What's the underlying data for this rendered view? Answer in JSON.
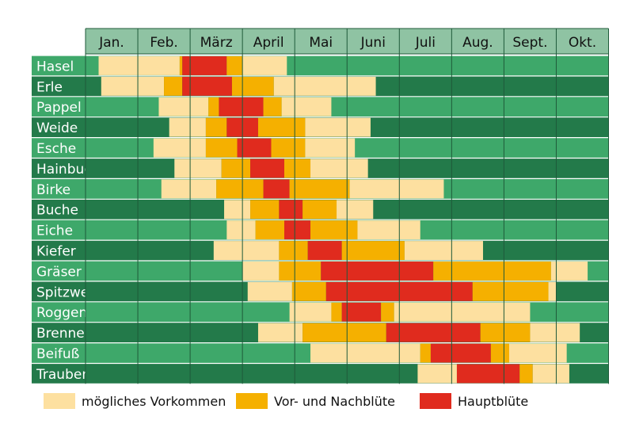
{
  "chart_data": {
    "type": "heatmap",
    "months": [
      "Jan.",
      "Feb.",
      "März",
      "April",
      "Mai",
      "Juni",
      "Juli",
      "Aug.",
      "Sept.",
      "Okt."
    ],
    "rows": [
      {
        "plant": "Hasel",
        "periods": [
          {
            "level": "moeglich",
            "from": 0.25,
            "to": 1.8
          },
          {
            "level": "vornach",
            "from": 1.8,
            "to": 1.85
          },
          {
            "level": "haupt",
            "from": 1.85,
            "to": 2.7
          },
          {
            "level": "vornach",
            "from": 2.7,
            "to": 3.0
          },
          {
            "level": "moeglich",
            "from": 3.0,
            "to": 3.85
          }
        ]
      },
      {
        "plant": "Erle",
        "periods": [
          {
            "level": "moeglich",
            "from": 0.3,
            "to": 1.5
          },
          {
            "level": "vornach",
            "from": 1.5,
            "to": 1.85
          },
          {
            "level": "haupt",
            "from": 1.85,
            "to": 2.8
          },
          {
            "level": "vornach",
            "from": 2.8,
            "to": 3.6
          },
          {
            "level": "moeglich",
            "from": 3.6,
            "to": 5.55
          }
        ]
      },
      {
        "plant": "Pappel",
        "periods": [
          {
            "level": "moeglich",
            "from": 1.4,
            "to": 2.35
          },
          {
            "level": "vornach",
            "from": 2.35,
            "to": 2.55
          },
          {
            "level": "haupt",
            "from": 2.55,
            "to": 3.4
          },
          {
            "level": "vornach",
            "from": 3.4,
            "to": 3.75
          },
          {
            "level": "moeglich",
            "from": 3.75,
            "to": 4.7
          }
        ]
      },
      {
        "plant": "Weide",
        "periods": [
          {
            "level": "moeglich",
            "from": 1.6,
            "to": 2.3
          },
          {
            "level": "vornach",
            "from": 2.3,
            "to": 2.7
          },
          {
            "level": "haupt",
            "from": 2.7,
            "to": 3.3
          },
          {
            "level": "vornach",
            "from": 3.3,
            "to": 4.2
          },
          {
            "level": "moeglich",
            "from": 4.2,
            "to": 5.45
          }
        ]
      },
      {
        "plant": "Esche",
        "periods": [
          {
            "level": "moeglich",
            "from": 1.3,
            "to": 2.3
          },
          {
            "level": "vornach",
            "from": 2.3,
            "to": 2.9
          },
          {
            "level": "haupt",
            "from": 2.9,
            "to": 3.55
          },
          {
            "level": "vornach",
            "from": 3.55,
            "to": 4.2
          },
          {
            "level": "moeglich",
            "from": 4.2,
            "to": 5.15
          }
        ]
      },
      {
        "plant": "Hainbuche",
        "periods": [
          {
            "level": "moeglich",
            "from": 1.7,
            "to": 2.6
          },
          {
            "level": "vornach",
            "from": 2.6,
            "to": 3.15
          },
          {
            "level": "haupt",
            "from": 3.15,
            "to": 3.8
          },
          {
            "level": "vornach",
            "from": 3.8,
            "to": 4.3
          },
          {
            "level": "moeglich",
            "from": 4.3,
            "to": 5.4
          }
        ]
      },
      {
        "plant": "Birke",
        "periods": [
          {
            "level": "moeglich",
            "from": 1.45,
            "to": 2.5
          },
          {
            "level": "vornach",
            "from": 2.5,
            "to": 3.4
          },
          {
            "level": "haupt",
            "from": 3.4,
            "to": 3.9
          },
          {
            "level": "vornach",
            "from": 3.9,
            "to": 5.05
          },
          {
            "level": "moeglich",
            "from": 5.05,
            "to": 6.85
          }
        ]
      },
      {
        "plant": "Buche",
        "periods": [
          {
            "level": "moeglich",
            "from": 2.65,
            "to": 3.15
          },
          {
            "level": "vornach",
            "from": 3.15,
            "to": 3.7
          },
          {
            "level": "haupt",
            "from": 3.7,
            "to": 4.15
          },
          {
            "level": "vornach",
            "from": 4.15,
            "to": 4.8
          },
          {
            "level": "moeglich",
            "from": 4.8,
            "to": 5.5
          }
        ]
      },
      {
        "plant": "Eiche",
        "periods": [
          {
            "level": "moeglich",
            "from": 2.7,
            "to": 3.25
          },
          {
            "level": "vornach",
            "from": 3.25,
            "to": 3.8
          },
          {
            "level": "haupt",
            "from": 3.8,
            "to": 4.3
          },
          {
            "level": "vornach",
            "from": 4.3,
            "to": 5.2
          },
          {
            "level": "moeglich",
            "from": 5.2,
            "to": 6.4
          }
        ]
      },
      {
        "plant": "Kiefer",
        "periods": [
          {
            "level": "moeglich",
            "from": 2.45,
            "to": 3.7
          },
          {
            "level": "vornach",
            "from": 3.7,
            "to": 4.25
          },
          {
            "level": "haupt",
            "from": 4.25,
            "to": 4.9
          },
          {
            "level": "vornach",
            "from": 4.9,
            "to": 6.1
          },
          {
            "level": "moeglich",
            "from": 6.1,
            "to": 7.6
          }
        ]
      },
      {
        "plant": "Gräser",
        "periods": [
          {
            "level": "moeglich",
            "from": 3.0,
            "to": 3.7
          },
          {
            "level": "vornach",
            "from": 3.7,
            "to": 4.5
          },
          {
            "level": "haupt",
            "from": 4.5,
            "to": 6.65
          },
          {
            "level": "vornach",
            "from": 6.65,
            "to": 8.9
          },
          {
            "level": "moeglich",
            "from": 8.9,
            "to": 9.6
          }
        ]
      },
      {
        "plant": "Spitzwegerich",
        "periods": [
          {
            "level": "moeglich",
            "from": 3.1,
            "to": 3.95
          },
          {
            "level": "vornach",
            "from": 3.95,
            "to": 4.6
          },
          {
            "level": "haupt",
            "from": 4.6,
            "to": 7.4
          },
          {
            "level": "vornach",
            "from": 7.4,
            "to": 8.85
          },
          {
            "level": "moeglich",
            "from": 8.85,
            "to": 9.0
          }
        ]
      },
      {
        "plant": "Roggen",
        "periods": [
          {
            "level": "moeglich",
            "from": 3.9,
            "to": 4.7
          },
          {
            "level": "vornach",
            "from": 4.7,
            "to": 4.9
          },
          {
            "level": "haupt",
            "from": 4.9,
            "to": 5.65
          },
          {
            "level": "vornach",
            "from": 5.65,
            "to": 5.9
          },
          {
            "level": "moeglich",
            "from": 5.9,
            "to": 8.5
          }
        ]
      },
      {
        "plant": "Brennessel",
        "periods": [
          {
            "level": "moeglich",
            "from": 3.3,
            "to": 4.15
          },
          {
            "level": "vornach",
            "from": 4.15,
            "to": 5.75
          },
          {
            "level": "haupt",
            "from": 5.75,
            "to": 7.55
          },
          {
            "level": "vornach",
            "from": 7.55,
            "to": 8.5
          },
          {
            "level": "moeglich",
            "from": 8.5,
            "to": 9.45
          }
        ]
      },
      {
        "plant": "Beifuß",
        "periods": [
          {
            "level": "moeglich",
            "from": 4.3,
            "to": 6.4
          },
          {
            "level": "vornach",
            "from": 6.4,
            "to": 6.6
          },
          {
            "level": "haupt",
            "from": 6.6,
            "to": 7.75
          },
          {
            "level": "vornach",
            "from": 7.75,
            "to": 8.1
          },
          {
            "level": "moeglich",
            "from": 8.1,
            "to": 9.2
          }
        ]
      },
      {
        "plant": "Traubenkraut",
        "periods": [
          {
            "level": "moeglich",
            "from": 6.35,
            "to": 7.1
          },
          {
            "level": "haupt",
            "from": 7.1,
            "to": 8.3
          },
          {
            "level": "vornach",
            "from": 8.3,
            "to": 8.55
          },
          {
            "level": "moeglich",
            "from": 8.55,
            "to": 9.25
          }
        ]
      }
    ],
    "legend": [
      {
        "key": "moeglich",
        "label": "mögliches Vorkommen",
        "color": "#fde0a0"
      },
      {
        "key": "vornach",
        "label": "Vor- und Nachblüte",
        "color": "#f5b000"
      },
      {
        "key": "haupt",
        "label": "Hauptblüte",
        "color": "#e02b1e"
      }
    ],
    "colors": {
      "header_bg": "#8fc3a3",
      "row_green_light": "#3ea86a",
      "row_green_dark": "#237a4a",
      "grid_line": "#1f5a3a"
    }
  }
}
